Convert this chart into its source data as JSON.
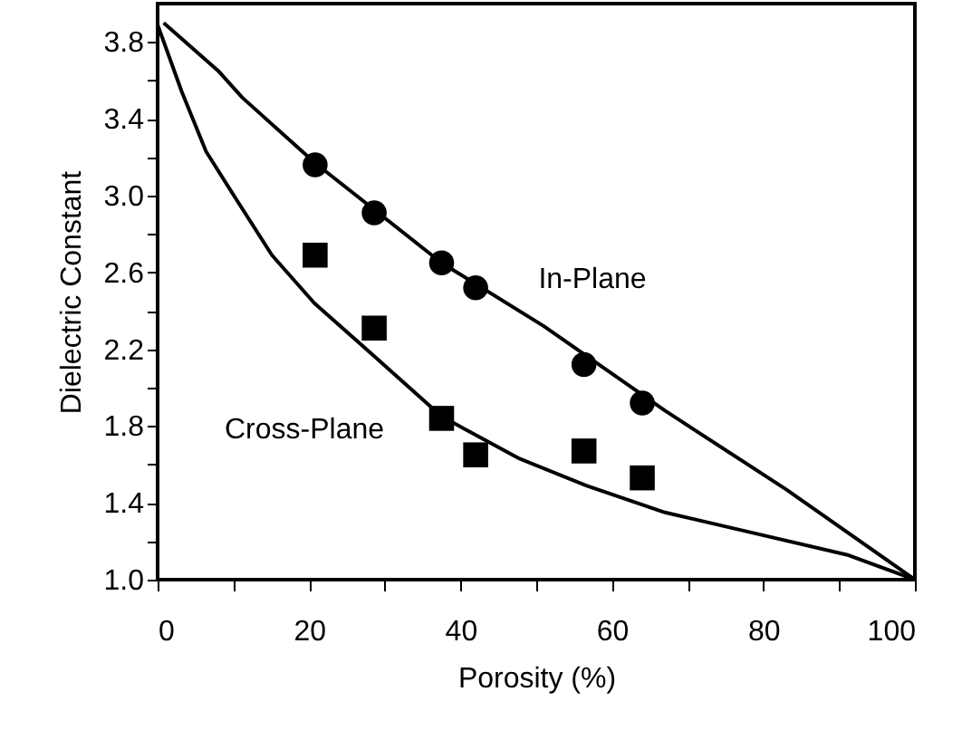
{
  "chart_data": {
    "type": "scatter",
    "xlabel": "Porosity (%)",
    "ylabel": "Dielectric Constant",
    "xlim": [
      0,
      100
    ],
    "ylim": [
      1.0,
      4.0
    ],
    "xticks": [
      0,
      {
        "value": 10,
        "label": null
      },
      20,
      {
        "value": 30,
        "label": null
      },
      40,
      {
        "value": 50,
        "label": null
      },
      60,
      {
        "value": 70,
        "label": null
      },
      80,
      {
        "value": 90,
        "label": null
      },
      100
    ],
    "yticks": [
      {
        "value": 1.0,
        "label": "1.0"
      },
      {
        "value": 1.2,
        "label": null
      },
      1.4,
      {
        "value": 1.6,
        "label": null
      },
      1.8,
      {
        "value": 2.0,
        "label": null
      },
      2.2,
      {
        "value": 2.4,
        "label": null
      },
      2.6,
      {
        "value": 2.8,
        "label": null
      },
      {
        "value": 3.0,
        "label": "3.0"
      },
      {
        "value": 3.2,
        "label": null
      },
      3.4,
      {
        "value": 3.6,
        "label": null
      },
      3.8
    ],
    "grid": false,
    "series": [
      {
        "type": "line",
        "color": "#000000",
        "marker": "none",
        "line_style": "solid",
        "x": [
          0.8,
          8,
          11.2,
          20.8,
          37.5,
          51,
          67,
          83,
          100
        ],
        "values": [
          3.9,
          3.65,
          3.51,
          3.17,
          2.65,
          2.32,
          1.88,
          1.47,
          1.0
        ]
      },
      {
        "type": "line",
        "color": "#000000",
        "marker": "none",
        "line_style": "solid",
        "x": [
          0,
          3.2,
          6.4,
          10.4,
          15.1,
          20.7,
          28.7,
          37.5,
          47.8,
          56.6,
          67,
          79,
          91,
          100
        ],
        "values": [
          3.89,
          3.54,
          3.23,
          2.98,
          2.69,
          2.44,
          2.16,
          1.85,
          1.63,
          1.49,
          1.35,
          1.24,
          1.13,
          1.0
        ]
      },
      {
        "color": "#000000",
        "marker": "circle",
        "x": [
          20.8,
          28.6,
          37.5,
          42.0,
          56.3,
          64.0
        ],
        "values": [
          3.16,
          2.91,
          2.65,
          2.52,
          2.12,
          1.92
        ]
      },
      {
        "color": "#000000",
        "marker": "square",
        "x": [
          20.8,
          28.6,
          37.5,
          42.0,
          56.3,
          64.0
        ],
        "values": [
          2.69,
          2.31,
          1.84,
          1.65,
          1.67,
          1.53
        ]
      }
    ],
    "annotations": [
      "In-Plane",
      "Cross-Plane"
    ]
  }
}
